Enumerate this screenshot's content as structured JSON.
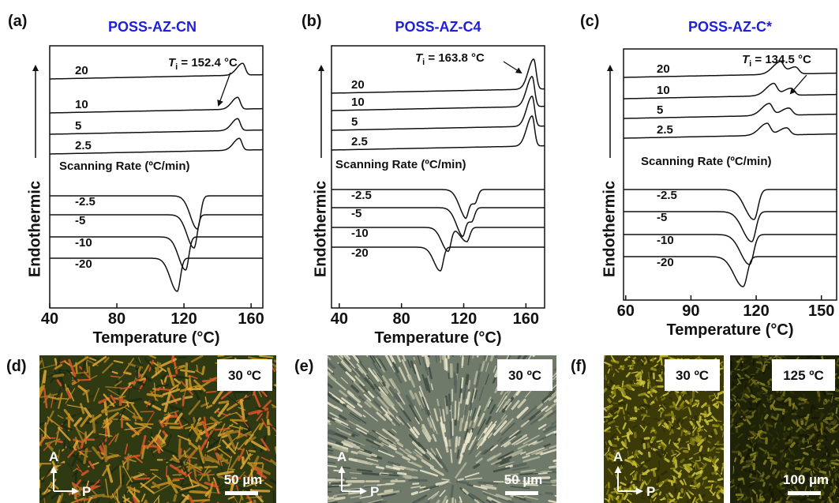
{
  "chart_data": [
    {
      "type": "line",
      "letter": "(a)",
      "title": "POSS-AZ-CN",
      "y_label": "Endothermic",
      "x_label": "Temperature (°C)",
      "xlim": [
        40,
        167
      ],
      "xticks": [
        40,
        80,
        120,
        160
      ],
      "annotation": {
        "symbol": "T",
        "subscript": "i",
        "text": " = 152.4 °C"
      },
      "section_label": "Scanning Rate (ºC/min)",
      "heating": [
        {
          "label": "20",
          "peaks": [
            155
          ]
        },
        {
          "label": "10",
          "peaks": [
            152
          ]
        },
        {
          "label": "5",
          "peaks": [
            152
          ]
        },
        {
          "label": "2.5",
          "peaks": [
            153
          ]
        }
      ],
      "cooling": [
        {
          "label": "-2.5",
          "peaks": [
            128
          ]
        },
        {
          "label": "-5",
          "peaks": [
            126
          ]
        },
        {
          "label": "-10",
          "peaks": [
            121
          ]
        },
        {
          "label": "-20",
          "peaks": [
            116
          ]
        }
      ]
    },
    {
      "type": "line",
      "letter": "(b)",
      "title": "POSS-AZ-C4",
      "y_label": "Endothermic",
      "x_label": "Temperature (°C)",
      "xlim": [
        35,
        172
      ],
      "xticks": [
        40,
        80,
        120,
        160
      ],
      "annotation": {
        "symbol": "T",
        "subscript": "i",
        "text": " = 163.8 °C"
      },
      "section_label": "Scanning Rate (ºC/min)",
      "heating": [
        {
          "label": "20",
          "peaks": [
            165
          ]
        },
        {
          "label": "10",
          "peaks": [
            164
          ]
        },
        {
          "label": "5",
          "peaks": [
            164
          ]
        },
        {
          "label": "2.5",
          "peaks": [
            164
          ]
        }
      ],
      "cooling": [
        {
          "label": "-2.5",
          "peaks": [
            121,
            127
          ]
        },
        {
          "label": "-5",
          "peaks": [
            119,
            125
          ]
        },
        {
          "label": "-10",
          "peaks": [
            110,
            122
          ]
        },
        {
          "label": "-20",
          "peaks": [
            105
          ]
        }
      ]
    },
    {
      "type": "line",
      "letter": "(c)",
      "title": "POSS-AZ-C*",
      "y_label": "Endothermic",
      "x_label": "Temperature (°C)",
      "xlim": [
        59,
        157
      ],
      "xticks": [
        60,
        90,
        120,
        150
      ],
      "annotation": {
        "symbol": "T",
        "subscript": "i",
        "text": " = 134.5 °C"
      },
      "section_label": "Scanning Rate (ºC/min)",
      "heating": [
        {
          "label": "20",
          "peaks": [
            131,
            138
          ]
        },
        {
          "label": "10",
          "peaks": [
            128,
            136
          ]
        },
        {
          "label": "5",
          "peaks": [
            126,
            135
          ]
        },
        {
          "label": "2.5",
          "peaks": [
            125,
            134
          ]
        }
      ],
      "cooling": [
        {
          "label": "-2.5",
          "peaks": [
            119
          ]
        },
        {
          "label": "-5",
          "peaks": [
            118
          ]
        },
        {
          "label": "-10",
          "peaks": [
            117
          ]
        },
        {
          "label": "-20",
          "peaks": [
            114
          ]
        }
      ]
    }
  ],
  "micrographs": [
    {
      "letter": "(d)",
      "analyzer": "A",
      "polarizer": "P",
      "images": [
        {
          "temperature": "30 ºC",
          "scale_bar": "50 µm"
        }
      ]
    },
    {
      "letter": "(e)",
      "analyzer": "A",
      "polarizer": "P",
      "images": [
        {
          "temperature": "30 ºC",
          "scale_bar": "50 µm"
        }
      ]
    },
    {
      "letter": "(f)",
      "analyzer": "A",
      "polarizer": "P",
      "images": [
        {
          "temperature": "30 ºC"
        },
        {
          "temperature": "125 ºC",
          "scale_bar": "100 µm"
        }
      ]
    }
  ]
}
